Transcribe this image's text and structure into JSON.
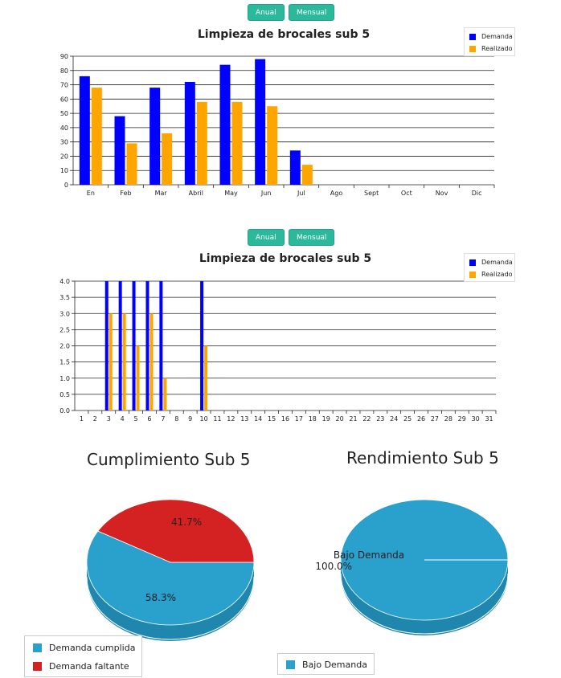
{
  "buttons": {
    "anual": "Anual",
    "mensual": "Mensual"
  },
  "colors": {
    "demanda": "#0000ff",
    "realizado": "#ffa500",
    "cumplida": "#2aa0cc",
    "faltante": "#d42222"
  },
  "chart_data": [
    {
      "type": "bar",
      "title": "Limpieza de brocales sub 5",
      "categories": [
        "En",
        "Feb",
        "Mar",
        "Abril",
        "May",
        "Jun",
        "Jul",
        "Ago",
        "Sept",
        "Oct",
        "Nov",
        "Dic"
      ],
      "series": [
        {
          "name": "Demanda",
          "values": [
            76,
            48,
            68,
            72,
            84,
            88,
            24,
            0,
            0,
            0,
            0,
            0
          ]
        },
        {
          "name": "Realizado",
          "values": [
            68,
            29,
            36,
            58,
            58,
            55,
            14,
            0,
            0,
            0,
            0,
            0
          ]
        }
      ],
      "ylim": [
        0,
        90
      ],
      "yticks": [
        "0",
        "10",
        "20",
        "30",
        "40",
        "50",
        "60",
        "70",
        "80",
        "90"
      ],
      "legend": "top-right",
      "grid": true
    },
    {
      "type": "bar",
      "title": "Limpieza de brocales sub 5",
      "categories": [
        "1",
        "2",
        "3",
        "4",
        "5",
        "6",
        "7",
        "8",
        "9",
        "10",
        "11",
        "12",
        "13",
        "14",
        "15",
        "16",
        "17",
        "18",
        "19",
        "20",
        "21",
        "22",
        "23",
        "24",
        "25",
        "26",
        "27",
        "28",
        "29",
        "30",
        "31"
      ],
      "series": [
        {
          "name": "Demanda",
          "values": [
            0,
            0,
            4,
            4,
            4,
            4,
            4,
            0,
            0,
            4,
            0,
            0,
            0,
            0,
            0,
            0,
            0,
            0,
            0,
            0,
            0,
            0,
            0,
            0,
            0,
            0,
            0,
            0,
            0,
            0,
            0
          ]
        },
        {
          "name": "Realizado",
          "values": [
            0,
            0,
            3,
            3,
            2,
            3,
            1,
            0,
            0,
            2,
            0,
            0,
            0,
            0,
            0,
            0,
            0,
            0,
            0,
            0,
            0,
            0,
            0,
            0,
            0,
            0,
            0,
            0,
            0,
            0,
            0
          ]
        }
      ],
      "ylim": [
        0,
        4
      ],
      "yticks": [
        "0.0",
        "0.5",
        "1.0",
        "1.5",
        "2.0",
        "2.5",
        "3.0",
        "3.5",
        "4.0"
      ],
      "legend": "top-right",
      "grid": true
    },
    {
      "type": "pie",
      "title": "Cumplimiento Sub 5",
      "slices": [
        {
          "label": "Demanda cumplida",
          "value": 58.3,
          "text": "58.3%"
        },
        {
          "label": "Demanda faltante",
          "value": 41.7,
          "text": "41.7%"
        }
      ],
      "legend": "bottom-left"
    },
    {
      "type": "pie",
      "title": "Rendimiento Sub 5",
      "slices": [
        {
          "label": "Bajo Demanda",
          "value": 100.0,
          "text": "100.0%"
        }
      ],
      "slice_label": "Bajo Demanda",
      "legend": "bottom"
    }
  ]
}
